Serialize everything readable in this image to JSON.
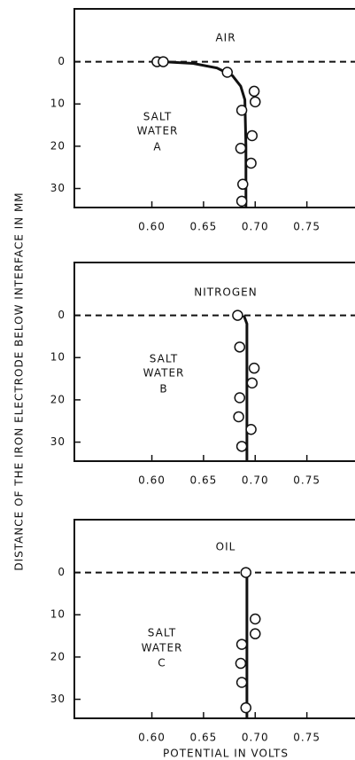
{
  "chart_data": [
    {
      "type": "scatter",
      "top_label": "AIR",
      "medium_label": [
        "SALT",
        "WATER",
        "A"
      ],
      "interface": 0,
      "points": {
        "x": [
          0.605,
          0.611,
          0.673,
          0.687,
          0.699,
          0.7,
          0.697,
          0.686,
          0.696,
          0.688,
          0.687
        ],
        "y": [
          0,
          0,
          2.5,
          11.5,
          7,
          9.5,
          17.5,
          20.5,
          24,
          29,
          33
        ]
      },
      "curve": {
        "x": [
          0.611,
          0.64,
          0.663,
          0.678,
          0.686,
          0.69,
          0.691,
          0.691
        ],
        "y": [
          0,
          0.4,
          1.5,
          3.3,
          5.8,
          9,
          20,
          34.5
        ]
      },
      "xlim": [
        0.525,
        0.8
      ],
      "ylim": [
        34.5,
        -12.5
      ],
      "xticks": [
        {
          "value": 0.6,
          "label": "0.60"
        },
        0.65,
        {
          "value": 0.7,
          "label": "0.70"
        },
        0.75
      ],
      "yticks": [
        0,
        10,
        20,
        30
      ]
    },
    {
      "type": "scatter",
      "top_label": "NITROGEN",
      "medium_label": [
        "SALT",
        "WATER",
        "B"
      ],
      "ylabel": "DISTANCE OF THE IRON ELECTRODE BELOW INTERFACE IN MM",
      "interface": 0,
      "points": {
        "x": [
          0.683,
          0.685,
          0.699,
          0.697,
          0.685,
          0.684,
          0.696,
          0.687
        ],
        "y": [
          0,
          7.5,
          12.5,
          16,
          19.5,
          24,
          27,
          31
        ]
      },
      "curve": {
        "x": [
          0.689,
          0.692,
          0.692
        ],
        "y": [
          0,
          2,
          34.5
        ]
      },
      "xlim": [
        0.525,
        0.8
      ],
      "ylim": [
        34.5,
        -12.5
      ],
      "xticks": [
        {
          "value": 0.6,
          "label": "0.60"
        },
        0.65,
        {
          "value": 0.7,
          "label": "0.70"
        },
        0.75
      ],
      "yticks": [
        0,
        10,
        20,
        30
      ]
    },
    {
      "type": "scatter",
      "top_label": "OIL",
      "medium_label": [
        "SALT",
        "WATER",
        "C"
      ],
      "xlabel": "POTENTIAL IN VOLTS",
      "interface": 0,
      "points": {
        "x": [
          0.691,
          0.7,
          0.7,
          0.687,
          0.686,
          0.687,
          0.691
        ],
        "y": [
          0,
          11,
          14.5,
          17,
          21.5,
          26,
          32
        ]
      },
      "curve": {
        "x": [
          0.692,
          0.692
        ],
        "y": [
          0,
          34.5
        ]
      },
      "xlim": [
        0.525,
        0.8
      ],
      "ylim": [
        34.5,
        -12.5
      ],
      "xticks": [
        {
          "value": 0.6,
          "label": "0.60"
        },
        0.65,
        {
          "value": 0.7,
          "label": "0.70"
        },
        0.75
      ],
      "yticks": [
        0,
        10,
        20,
        30
      ]
    }
  ]
}
